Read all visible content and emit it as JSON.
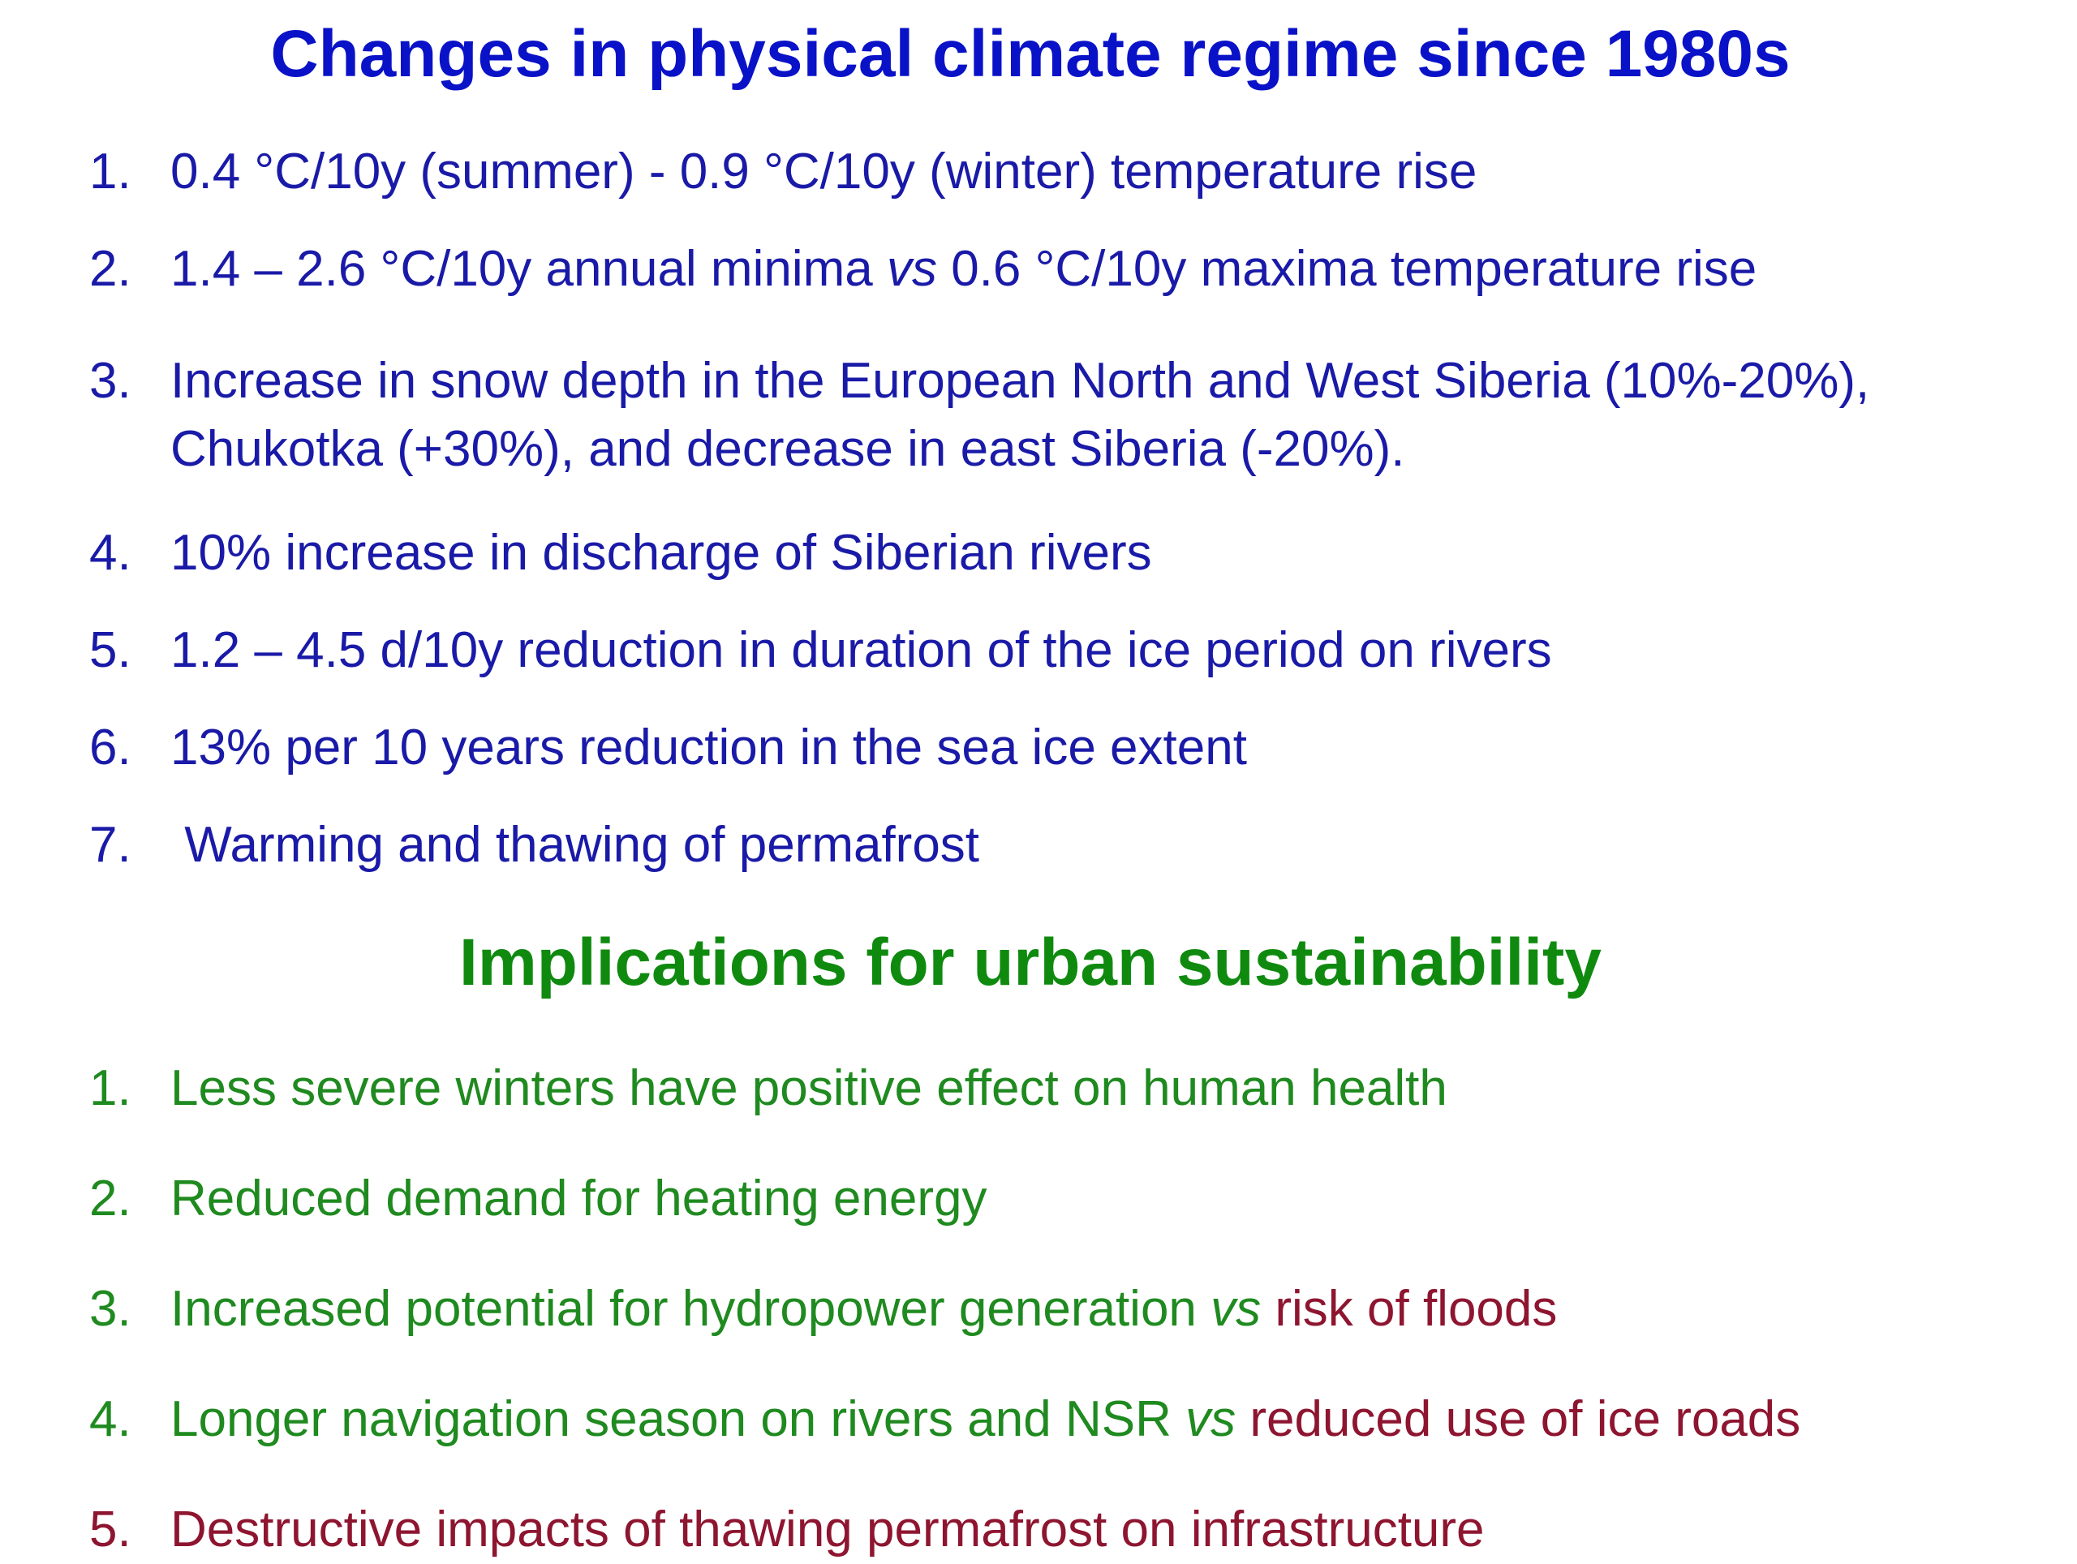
{
  "section1": {
    "title": "Changes in physical climate regime since 1980s",
    "items": [
      {
        "num": "1.",
        "text": "0.4 °C/10y (summer) - 0.9 °C/10y (winter) temperature rise"
      },
      {
        "num": "2.",
        "pre": "1.4 – 2.6 °C/10y annual minima ",
        "vs": "vs",
        "post": " 0.6 °C/10y maxima temperature rise"
      },
      {
        "num": "3.",
        "line1": "Increase in snow depth in the European North and West Siberia (10%-20%),",
        "line2": "Chukotka (+30%), and decrease in east Siberia (-20%)."
      },
      {
        "num": "4.",
        "text": "10% increase in discharge of Siberian rivers"
      },
      {
        "num": "5.",
        "text": "1.2 – 4.5 d/10y reduction in duration of the ice period on rivers"
      },
      {
        "num": "6.",
        "text": "13% per 10 years reduction in the sea ice extent"
      },
      {
        "num": "7.",
        "text": " Warming and thawing of permafrost"
      }
    ]
  },
  "section2": {
    "title": "Implications for urban sustainability",
    "items": [
      {
        "num": "1.",
        "text": "Less severe winters have positive effect on human health"
      },
      {
        "num": "2.",
        "text": "Reduced demand for heating energy"
      },
      {
        "num": "3.",
        "pre": "Increased potential for hydropower generation ",
        "vs": "vs",
        "post": " risk of floods"
      },
      {
        "num": "4.",
        "pre": "Longer navigation season on rivers and NSR ",
        "vs": "vs",
        "post": " reduced use of ice roads"
      },
      {
        "num": "5.",
        "text": "Destructive impacts of thawing permafrost on infrastructure"
      }
    ]
  },
  "colors": {
    "title_blue": "#0a12c8",
    "text_blue": "#1a1aa8",
    "green": "#1f8a1f",
    "red": "#8e1530"
  }
}
